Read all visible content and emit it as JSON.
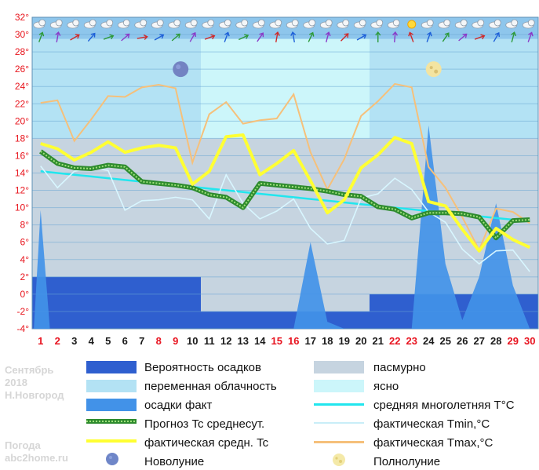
{
  "watermark": {
    "month": "Сентябрь",
    "year": "2018",
    "city": "Н.Новгород",
    "site_label": "Погода",
    "site": "abc2home.ru"
  },
  "colors": {
    "plot_bg": "#8ec6ec",
    "clear": "#ccf6fa",
    "partly": "#b3e2f4",
    "overcast": "#c6d4e0",
    "precip_prob": "#2f5fcf",
    "precip_fact": "#4292e8",
    "normal": "#22e6ee",
    "tmin": "#d8f6ff",
    "tmax": "#f6c07a",
    "tc_fact": "#ffff33",
    "forecast": "#2e8b2e",
    "weekend": "#e81420",
    "weekday": "#1a1a1a",
    "grid": "#6aa7d4"
  },
  "legend": [
    {
      "key": "precip_prob",
      "label": "Вероятность осадков"
    },
    {
      "key": "overcast",
      "label": "пасмурно"
    },
    {
      "key": "partly",
      "label": "переменная облачность"
    },
    {
      "key": "clear",
      "label": "ясно"
    },
    {
      "key": "precip_fact",
      "label": "осадки факт"
    },
    {
      "key": "normal",
      "label": "средняя многолетняя T°C"
    },
    {
      "key": "forecast",
      "label": "Прогноз Tc среднесут."
    },
    {
      "key": "tmin",
      "label": "фактическая Tmin,°C"
    },
    {
      "key": "tc_fact",
      "label": "фактическая средн. Tc"
    },
    {
      "key": "tmax",
      "label": "фактическая Tmax,°C"
    },
    {
      "key": "new_moon",
      "label": "Новолуние"
    },
    {
      "key": "full_moon",
      "label": "Полнолуние"
    }
  ],
  "chart_data": {
    "type": "line",
    "ylim": [
      -4,
      32
    ],
    "yticks": [
      "-4°",
      "-2°",
      "0°",
      "2°",
      "4°",
      "6°",
      "8°",
      "10°",
      "12°",
      "14°",
      "16°",
      "18°",
      "20°",
      "22°",
      "24°",
      "26°",
      "28°",
      "30°",
      "32°"
    ],
    "days": [
      "1",
      "2",
      "3",
      "4",
      "5",
      "6",
      "7",
      "8",
      "9",
      "10",
      "11",
      "12",
      "13",
      "14",
      "15",
      "16",
      "17",
      "18",
      "19",
      "20",
      "21",
      "22",
      "23",
      "24",
      "25",
      "26",
      "27",
      "28",
      "29",
      "30"
    ],
    "weekend_days": [
      1,
      2,
      8,
      9,
      15,
      16,
      22,
      23,
      29,
      30
    ],
    "cloud_bands": [
      {
        "from": 0.5,
        "to": 10.5,
        "type": "partly",
        "upper": 29.5
      },
      {
        "from": 10.5,
        "to": 20.5,
        "type": "clear",
        "upper": 29.5
      },
      {
        "from": 20.5,
        "to": 30.5,
        "type": "partly",
        "upper": 29.5
      }
    ],
    "overcast_bands": [
      {
        "from": 0.5,
        "to": 20.5,
        "top": 18
      },
      {
        "from": 20.5,
        "to": 30.5,
        "top": 18
      }
    ],
    "precip_probability": [
      {
        "from": 0.5,
        "to": 10.5,
        "value": 2
      },
      {
        "from": 10.5,
        "to": 20.5,
        "value": -2
      },
      {
        "from": 20.5,
        "to": 30.5,
        "value": 0
      }
    ],
    "precip_fact": [
      -4,
      -4,
      -4,
      -4,
      -4,
      -4,
      -4,
      -4,
      -4,
      -4,
      -4,
      -4,
      -4,
      -4,
      -4,
      -4,
      6,
      -3.2,
      -4,
      -4,
      -4,
      -4,
      -4,
      19.5,
      3.5,
      -3,
      2,
      10.5,
      1,
      -4
    ],
    "precip_fact_day1": 9.7,
    "series": [
      {
        "name": "фактическая Tmax,°C",
        "key": "tmax",
        "values": [
          22.1,
          22.4,
          17.7,
          20.2,
          22.9,
          22.8,
          23.9,
          24.2,
          23.8,
          15.2,
          20.8,
          22.2,
          19.7,
          20.1,
          20.3,
          23.1,
          16.4,
          12.1,
          15.6,
          20.6,
          22.3,
          24.3,
          23.9,
          14.7,
          12.3,
          8.9,
          5.1,
          9.9,
          9.5,
          8.2
        ]
      },
      {
        "name": "фактическая Tmin,°C",
        "key": "tmin",
        "values": [
          14.8,
          12.3,
          14.2,
          14.6,
          14.3,
          9.7,
          10.8,
          10.9,
          11.2,
          10.9,
          8.7,
          13.8,
          10.5,
          8.7,
          9.6,
          11.0,
          7.6,
          5.8,
          6.2,
          11.1,
          11.6,
          13.4,
          12.1,
          9.5,
          8.3,
          5.2,
          3.5,
          5.0,
          5.1,
          2.6
        ]
      },
      {
        "name": "фактическая средн. Tc",
        "key": "tc_fact",
        "values": [
          17.4,
          16.8,
          15.5,
          16.4,
          17.6,
          16.4,
          16.9,
          17.2,
          16.9,
          12.7,
          14.2,
          18.2,
          18.4,
          13.8,
          15.1,
          16.6,
          13.1,
          9.4,
          10.9,
          14.6,
          16.1,
          18.1,
          17.4,
          10.7,
          10.2,
          7.5,
          5.0,
          7.6,
          6.3,
          5.4
        ]
      },
      {
        "name": "Прогноз Tc среднесут.",
        "key": "forecast",
        "values": [
          16.5,
          15.1,
          14.6,
          14.5,
          14.9,
          14.7,
          13.0,
          12.8,
          12.6,
          12.3,
          11.5,
          11.2,
          10.0,
          12.8,
          12.6,
          12.4,
          12.2,
          11.9,
          11.5,
          11.3,
          10.1,
          9.8,
          8.8,
          9.4,
          9.4,
          9.3,
          8.9,
          6.5,
          8.5,
          8.6
        ]
      },
      {
        "name": "средняя многолетняя T°C",
        "key": "normal",
        "values": [
          14.2,
          14.0,
          13.8,
          13.6,
          13.4,
          13.2,
          13.0,
          12.8,
          12.6,
          12.4,
          12.2,
          12.0,
          11.8,
          11.6,
          11.4,
          11.2,
          11.0,
          10.8,
          10.6,
          10.4,
          10.2,
          10.0,
          9.8,
          9.6,
          9.4,
          9.2,
          9.0,
          8.8,
          8.6,
          8.4
        ]
      }
    ],
    "new_moon_day": 9.3,
    "full_moon_day": 24.3,
    "moon_level": 26
  }
}
